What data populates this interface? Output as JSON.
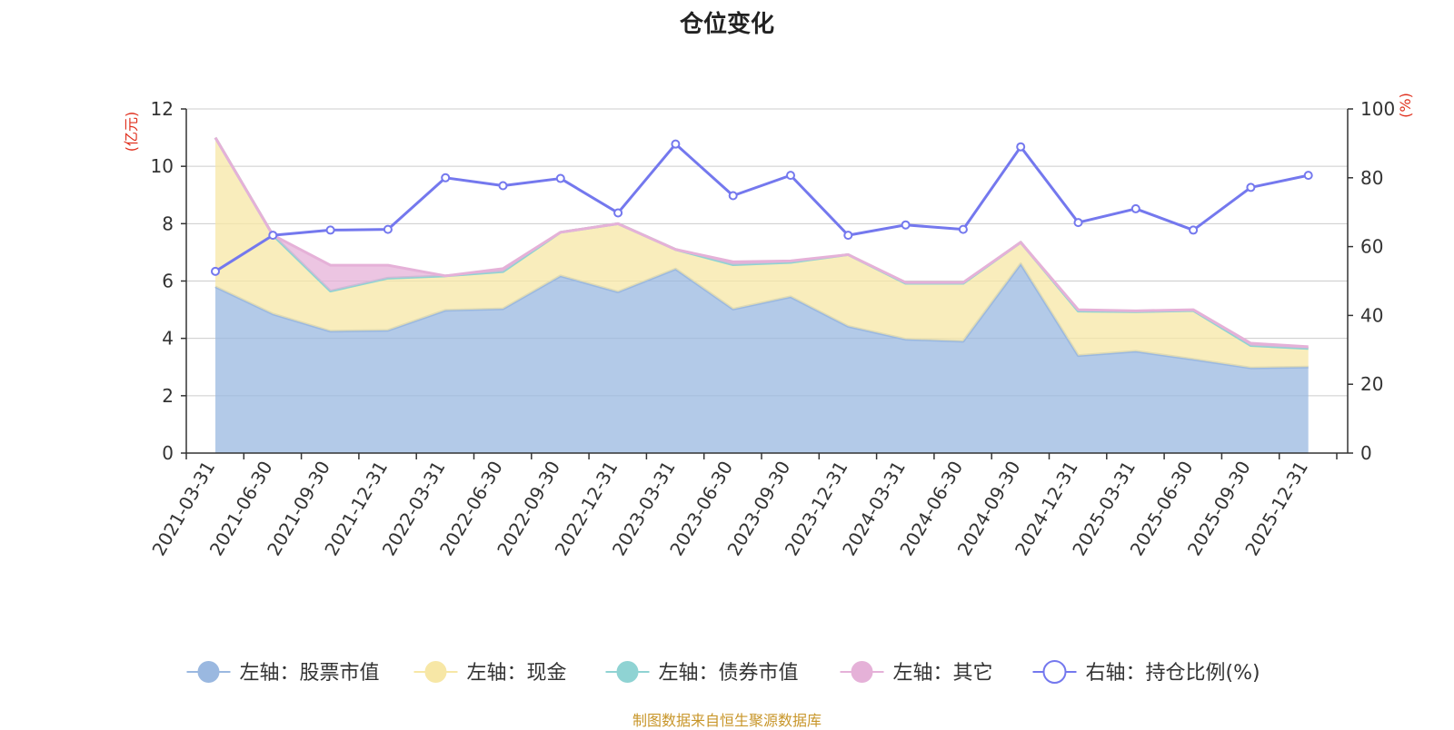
{
  "chart_data": {
    "type": "area",
    "title": "仓位变化",
    "categories": [
      "2021-03-31",
      "2021-06-30",
      "2021-09-30",
      "2021-12-31",
      "2022-03-31",
      "2022-06-30",
      "2022-09-30",
      "2022-12-31",
      "2023-03-31",
      "2023-06-30",
      "2023-09-30",
      "2023-12-31",
      "2024-03-31",
      "2024-06-30",
      "2024-09-30",
      "2024-12-31",
      "2025-03-31",
      "2025-06-30",
      "2025-09-30",
      "2025-12-31"
    ],
    "left_axis": {
      "name": "(亿元)",
      "min": 0,
      "max": 12,
      "ticks": [
        0,
        2,
        4,
        6,
        8,
        10,
        12
      ]
    },
    "right_axis": {
      "name": "(%)",
      "min": 0,
      "max": 100,
      "ticks": [
        0,
        20,
        40,
        60,
        80,
        100
      ]
    },
    "series": [
      {
        "name": "左轴：股票市值",
        "axis": "left",
        "stack": true,
        "color": "#9ab8e0",
        "values": [
          5.8,
          4.85,
          4.25,
          4.28,
          4.98,
          5.03,
          6.18,
          5.62,
          6.42,
          5.02,
          5.45,
          4.42,
          3.97,
          3.9,
          6.6,
          3.4,
          3.55,
          3.27,
          2.97,
          3.0
        ]
      },
      {
        "name": "左轴：现金",
        "axis": "left",
        "stack": true,
        "color": "#f7e7a6",
        "values": [
          5.2,
          2.75,
          1.4,
          1.82,
          1.2,
          1.3,
          1.52,
          2.38,
          0.68,
          1.55,
          1.2,
          2.5,
          1.95,
          2.02,
          0.75,
          1.55,
          1.38,
          1.7,
          0.78,
          0.65
        ]
      },
      {
        "name": "左轴：债券市值",
        "axis": "left",
        "stack": true,
        "color": "#8fd3d3",
        "values": [
          0,
          0,
          0,
          0,
          0,
          0,
          0,
          0,
          0,
          0,
          0,
          0,
          0,
          0,
          0,
          0,
          0,
          0,
          0,
          0
        ]
      },
      {
        "name": "左轴：其它",
        "axis": "left",
        "stack": true,
        "color": "#e5b1d8",
        "values": [
          0,
          0,
          0.9,
          0.45,
          0,
          0.1,
          0,
          0,
          0,
          0.1,
          0.05,
          0,
          0.03,
          0.03,
          0,
          0.05,
          0.03,
          0.03,
          0.08,
          0.06
        ]
      },
      {
        "name": "右轴：持仓比例(%)",
        "axis": "right",
        "type": "line",
        "color": "#7478ee",
        "values": [
          52.8,
          63.3,
          64.8,
          65.0,
          80.0,
          77.7,
          79.8,
          69.8,
          89.8,
          74.8,
          80.7,
          63.3,
          66.3,
          65.0,
          89.0,
          67.0,
          71.0,
          64.8,
          77.2,
          80.7
        ]
      }
    ]
  },
  "source_note": "制图数据来自恒生聚源数据库"
}
